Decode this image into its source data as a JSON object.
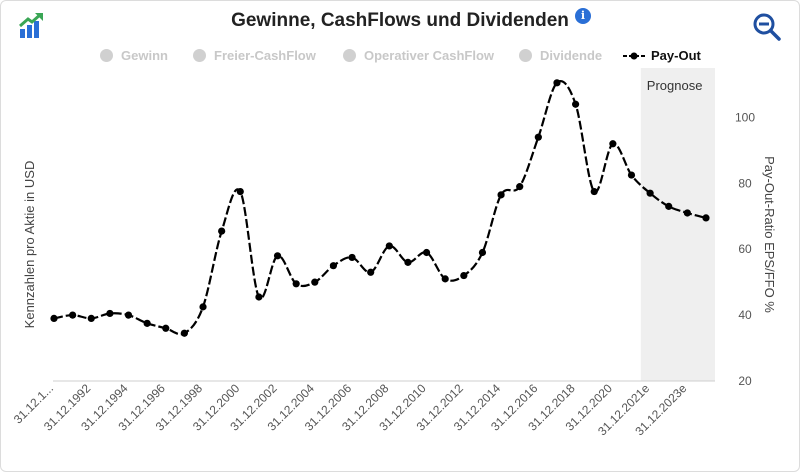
{
  "header": {
    "title": "Gewinne, CashFlows und Dividenden",
    "info_glyph": "i"
  },
  "icons": {
    "logo": "growth-chart-icon",
    "info": "info-icon",
    "zoom": "zoom-out-icon"
  },
  "legend": [
    {
      "label": "Gewinn",
      "active": false
    },
    {
      "label": "Freier-CashFlow",
      "active": false
    },
    {
      "label": "Operativer CashFlow",
      "active": false
    },
    {
      "label": "Dividende",
      "active": false
    },
    {
      "label": "Pay-Out",
      "active": true
    }
  ],
  "colors": {
    "series": "#000000",
    "inactive_legend": "#c8c8c8",
    "forecast_band": "#efefef",
    "brand_green": "#3aa655",
    "brand_blue": "#2a6fd6",
    "zoom": "#1f4fa0"
  },
  "chart_data": {
    "type": "line",
    "title": "Gewinne, CashFlows und Dividenden",
    "ylabel_left": "Kennzahlen pro Aktie in USD",
    "ylabel_right": "Pay-Out-Ratio EPS/FFO %",
    "ylim": [
      20,
      115
    ],
    "yticks": [
      20,
      40,
      60,
      80,
      100
    ],
    "forecast_label": "Prognose",
    "forecast_start_index": 32,
    "x_tick_labels": [
      "31.12.1...",
      "31.12.1992",
      "31.12.1994",
      "31.12.1996",
      "31.12.1998",
      "31.12.2000",
      "31.12.2002",
      "31.12.2004",
      "31.12.2006",
      "31.12.2008",
      "31.12.2010",
      "31.12.2012",
      "31.12.2014",
      "31.12.2016",
      "31.12.2018",
      "31.12.2020",
      "31.12.2021e",
      "31.12.2023e"
    ],
    "x_tick_indices": [
      0,
      2,
      4,
      6,
      8,
      10,
      12,
      14,
      16,
      18,
      20,
      22,
      24,
      26,
      28,
      30,
      32,
      34
    ],
    "series": [
      {
        "name": "Pay-Out",
        "x": [
          "1990",
          "1991",
          "1992",
          "1993",
          "1994",
          "1995",
          "1996",
          "1997",
          "1998",
          "1999",
          "2000",
          "2001",
          "2002",
          "2003",
          "2004",
          "2005",
          "2006",
          "2007",
          "2008",
          "2009",
          "2010",
          "2011",
          "2012",
          "2013",
          "2014",
          "2015",
          "2016",
          "2017",
          "2018",
          "2019",
          "2020",
          "2021",
          "2021e",
          "2022e",
          "2023e",
          "2024e"
        ],
        "values": [
          39,
          40,
          39,
          40.5,
          40,
          37.5,
          36,
          34.5,
          42.5,
          65.5,
          77.5,
          45.5,
          58,
          49.5,
          50,
          55,
          57.5,
          53,
          61,
          56,
          59,
          51,
          52,
          59,
          76.5,
          79,
          94,
          110.5,
          104,
          77.5,
          92,
          82.5,
          77,
          73,
          71,
          69.5
        ]
      }
    ]
  }
}
